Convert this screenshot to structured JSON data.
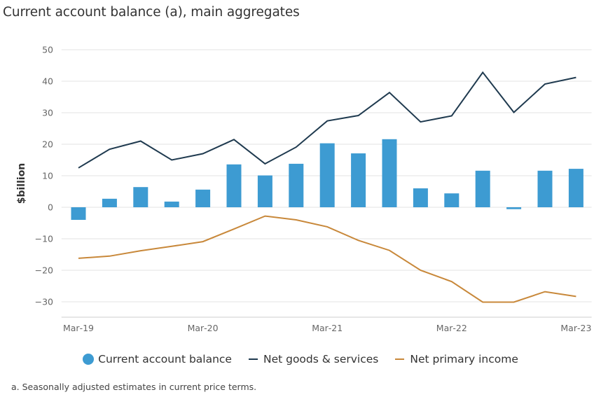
{
  "title": "Current account balance (a), main aggregates",
  "footnote": "a. Seasonally adjusted estimates in current price terms.",
  "colors": {
    "bar": "#3d9bd2",
    "goods_services": "#1f3a4f",
    "primary_income": "#c8883a",
    "grid": "#e3e3e3",
    "axis": "#cccccc"
  },
  "legend": [
    {
      "label": "Current account balance",
      "type": "dot",
      "color": "#3d9bd2"
    },
    {
      "label": "Net goods & services",
      "type": "line",
      "color": "#1f3a4f"
    },
    {
      "label": "Net primary income",
      "type": "line",
      "color": "#c8883a"
    }
  ],
  "chart_data": {
    "type": "bar",
    "title": "Current account balance (a), main aggregates",
    "xlabel": "",
    "ylabel": "$billion",
    "ylim": [
      -35,
      50
    ],
    "yticks": [
      50,
      40,
      30,
      20,
      10,
      0,
      -10,
      -20,
      -30
    ],
    "ytick_labels": [
      "50",
      "40",
      "30",
      "20",
      "10",
      "0",
      "−10",
      "−20",
      "−30"
    ],
    "grid": true,
    "legend_position": "bottom",
    "categories": [
      "Mar-19",
      "Jun-19",
      "Sep-19",
      "Dec-19",
      "Mar-20",
      "Jun-20",
      "Sep-20",
      "Dec-20",
      "Mar-21",
      "Jun-21",
      "Sep-21",
      "Dec-21",
      "Mar-22",
      "Jun-22",
      "Sep-22",
      "Dec-22",
      "Mar-23"
    ],
    "xtick_labels": [
      {
        "index": 0,
        "label": "Mar‑19"
      },
      {
        "index": 4,
        "label": "Mar‑20"
      },
      {
        "index": 8,
        "label": "Mar‑21"
      },
      {
        "index": 12,
        "label": "Mar‑22"
      },
      {
        "index": 16,
        "label": "Mar‑23"
      }
    ],
    "series": [
      {
        "name": "Current account balance",
        "type": "bar",
        "values": [
          -4.0,
          2.7,
          6.4,
          1.8,
          5.6,
          13.6,
          10.1,
          13.8,
          20.3,
          17.1,
          21.6,
          6.0,
          4.4,
          11.6,
          -0.6,
          11.6,
          12.2
        ]
      },
      {
        "name": "Net goods & services",
        "type": "line",
        "values": [
          12.5,
          18.4,
          21.0,
          15.0,
          17.0,
          21.5,
          13.8,
          19.1,
          27.4,
          29.1,
          36.4,
          27.1,
          29.0,
          42.8,
          30.1,
          39.1,
          41.2
        ]
      },
      {
        "name": "Net primary income",
        "type": "line",
        "values": [
          -16.2,
          -15.5,
          -13.8,
          -12.4,
          -10.9,
          -6.9,
          -2.8,
          -4.0,
          -6.2,
          -10.5,
          -13.7,
          -20.0,
          -23.6,
          -30.1,
          -30.1,
          -26.8,
          -28.3
        ]
      }
    ]
  }
}
